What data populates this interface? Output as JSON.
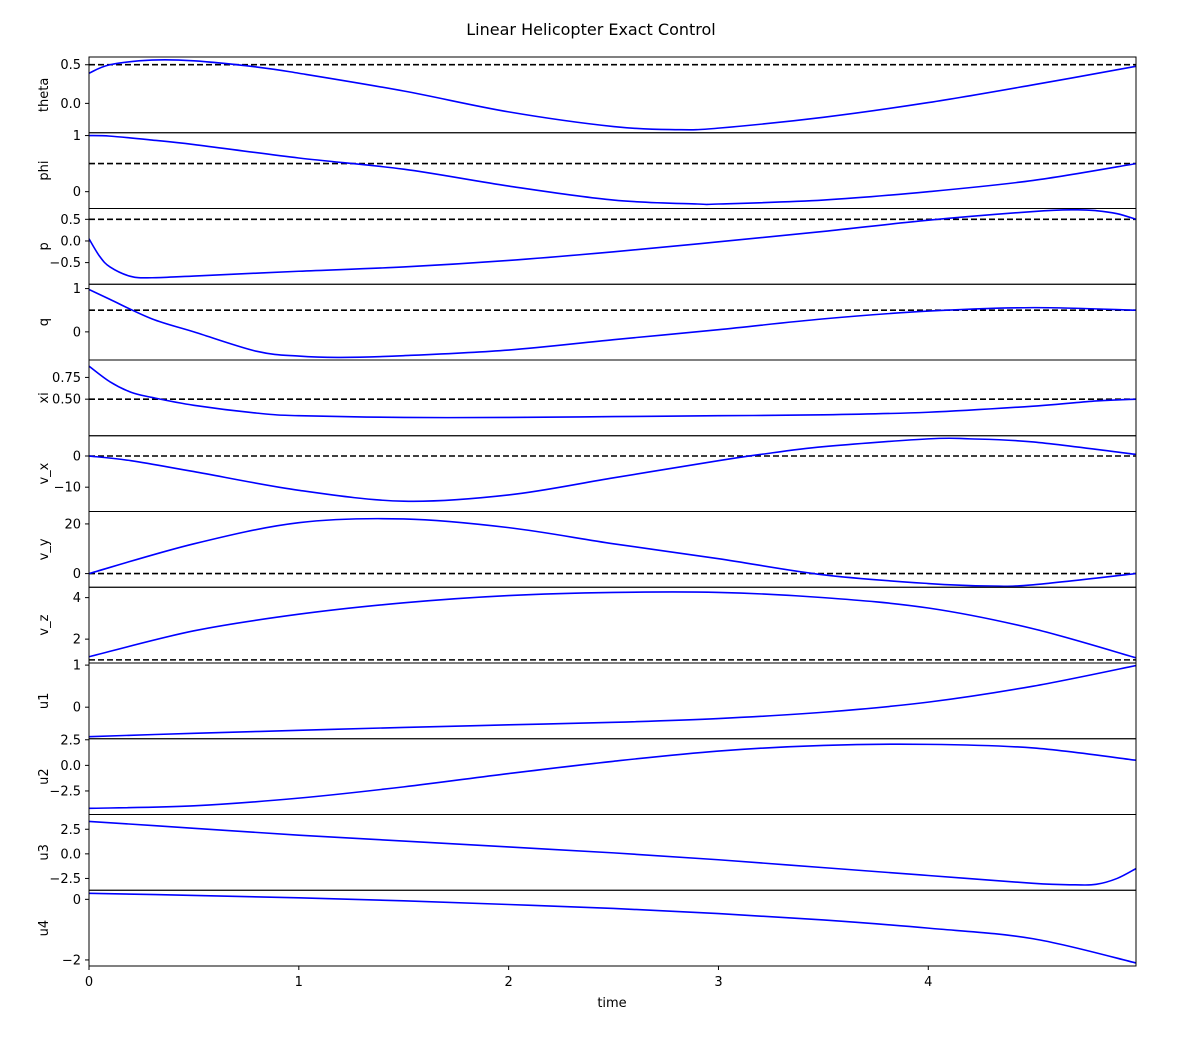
{
  "title": "Linear Helicopter Exact Control",
  "xlabel": "time",
  "chart_data": {
    "type": "line",
    "title": "Linear Helicopter Exact Control",
    "xlabel": "time",
    "xlim": [
      0,
      4.99
    ],
    "xticks": [
      0,
      1,
      2,
      3,
      4
    ],
    "xtick_labels": [
      "0",
      "1",
      "2",
      "3",
      "4"
    ],
    "grid": false,
    "colors": {
      "series": "#0000ff",
      "target": "#000000"
    },
    "subplots": [
      {
        "ylabel": "theta",
        "ylim": [
          -0.38,
          0.6
        ],
        "yticks": [
          0.5,
          0.0
        ],
        "ytick_labels": [
          "0.5",
          "0.0"
        ],
        "target": 0.5,
        "x": [
          0,
          0.1,
          0.3,
          0.5,
          0.8,
          1.0,
          1.5,
          2.0,
          2.5,
          2.8,
          3.0,
          3.5,
          4.0,
          4.5,
          4.99
        ],
        "y": [
          0.39,
          0.5,
          0.56,
          0.55,
          0.47,
          0.39,
          0.16,
          -0.11,
          -0.3,
          -0.34,
          -0.32,
          -0.18,
          0.01,
          0.24,
          0.48
        ]
      },
      {
        "ylabel": "phi",
        "ylim": [
          -0.3,
          1.05
        ],
        "yticks": [
          1,
          0
        ],
        "ytick_labels": [
          "1",
          "0"
        ],
        "target": 0.5,
        "x": [
          0,
          0.1,
          0.3,
          0.5,
          1.0,
          1.5,
          2.0,
          2.5,
          2.9,
          3.0,
          3.5,
          4.0,
          4.5,
          4.99
        ],
        "y": [
          1.0,
          0.99,
          0.92,
          0.84,
          0.6,
          0.4,
          0.1,
          -0.15,
          -0.22,
          -0.22,
          -0.15,
          0.0,
          0.2,
          0.5
        ]
      },
      {
        "ylabel": "p",
        "ylim": [
          -1.0,
          0.75
        ],
        "yticks": [
          0.5,
          0.0,
          -0.5
        ],
        "ytick_labels": [
          "0.5",
          "0.0",
          "−0.5"
        ],
        "target": 0.5,
        "x": [
          0,
          0.05,
          0.1,
          0.2,
          0.3,
          0.5,
          1.0,
          1.5,
          2.0,
          2.5,
          3.0,
          3.5,
          4.0,
          4.5,
          4.7,
          4.8,
          4.9,
          4.99
        ],
        "y": [
          0.05,
          -0.35,
          -0.6,
          -0.82,
          -0.85,
          -0.81,
          -0.7,
          -0.6,
          -0.45,
          -0.25,
          -0.02,
          0.22,
          0.48,
          0.68,
          0.72,
          0.7,
          0.63,
          0.5
        ]
      },
      {
        "ylabel": "q",
        "ylim": [
          -0.65,
          1.1
        ],
        "yticks": [
          1,
          0
        ],
        "ytick_labels": [
          "1",
          "0"
        ],
        "target": 0.5,
        "x": [
          0,
          0.1,
          0.3,
          0.5,
          0.8,
          1.0,
          1.2,
          1.5,
          2.0,
          2.5,
          3.0,
          3.5,
          4.0,
          4.5,
          4.99
        ],
        "y": [
          0.98,
          0.75,
          0.3,
          0.0,
          -0.45,
          -0.56,
          -0.59,
          -0.55,
          -0.42,
          -0.18,
          0.05,
          0.3,
          0.48,
          0.56,
          0.5
        ]
      },
      {
        "ylabel": "xi",
        "ylim": [
          0.08,
          0.95
        ],
        "yticks": [
          0.75,
          0.5
        ],
        "ytick_labels": [
          "0.75",
          "0.50"
        ],
        "target": 0.5,
        "x": [
          0,
          0.1,
          0.2,
          0.3,
          0.5,
          0.8,
          1.0,
          1.5,
          2.0,
          2.5,
          3.0,
          3.5,
          4.0,
          4.5,
          4.8,
          4.99
        ],
        "y": [
          0.88,
          0.7,
          0.58,
          0.52,
          0.43,
          0.34,
          0.31,
          0.29,
          0.29,
          0.3,
          0.31,
          0.32,
          0.35,
          0.42,
          0.48,
          0.5
        ]
      },
      {
        "ylabel": "v_x",
        "ylim": [
          -17.8,
          6.5
        ],
        "yticks": [
          0,
          -10
        ],
        "ytick_labels": [
          "0",
          "−10"
        ],
        "target": 0,
        "x": [
          0,
          0.2,
          0.5,
          1.0,
          1.5,
          2.0,
          2.5,
          3.0,
          3.2,
          3.5,
          4.0,
          4.2,
          4.5,
          4.99
        ],
        "y": [
          0,
          -1.5,
          -5,
          -11,
          -14.5,
          -12.5,
          -7,
          -1.5,
          0.5,
          3,
          5.5,
          5.5,
          4.5,
          0.5
        ]
      },
      {
        "ylabel": "v_y",
        "ylim": [
          -5.5,
          25
        ],
        "yticks": [
          20,
          0
        ],
        "ytick_labels": [
          "20",
          "0"
        ],
        "target": 0,
        "x": [
          0,
          0.5,
          1.0,
          1.5,
          2.0,
          2.5,
          3.0,
          3.5,
          4.0,
          4.3,
          4.5,
          4.99
        ],
        "y": [
          0,
          12,
          20.5,
          22,
          18.5,
          12,
          6,
          -0.5,
          -4,
          -5,
          -4.5,
          0
        ]
      },
      {
        "ylabel": "v_z",
        "ylim": [
          0.85,
          4.5
        ],
        "yticks": [
          4,
          2
        ],
        "ytick_labels": [
          "4",
          "2"
        ],
        "target": 1.0,
        "x": [
          0,
          0.5,
          1.0,
          1.5,
          2.0,
          2.5,
          3.0,
          3.5,
          4.0,
          4.5,
          4.99
        ],
        "y": [
          1.15,
          2.4,
          3.2,
          3.75,
          4.1,
          4.25,
          4.25,
          4.0,
          3.5,
          2.5,
          1.1
        ]
      },
      {
        "ylabel": "u1",
        "ylim": [
          -0.75,
          1.05
        ],
        "yticks": [
          1,
          0
        ],
        "ytick_labels": [
          "1",
          "0"
        ],
        "target": null,
        "x": [
          0,
          0.5,
          1.0,
          1.5,
          2.0,
          2.5,
          3.0,
          3.5,
          4.0,
          4.5,
          4.99
        ],
        "y": [
          -0.7,
          -0.62,
          -0.55,
          -0.48,
          -0.42,
          -0.36,
          -0.27,
          -0.12,
          0.12,
          0.5,
          0.99
        ]
      },
      {
        "ylabel": "u2",
        "ylim": [
          -4.8,
          2.6
        ],
        "yticks": [
          2.5,
          0.0,
          -2.5
        ],
        "ytick_labels": [
          "2.5",
          "0.0",
          "−2.5"
        ],
        "target": null,
        "x": [
          0,
          0.5,
          1.0,
          1.5,
          2.0,
          2.5,
          3.0,
          3.5,
          4.0,
          4.5,
          4.99
        ],
        "y": [
          -4.2,
          -3.95,
          -3.2,
          -2.1,
          -0.8,
          0.4,
          1.4,
          1.95,
          2.05,
          1.7,
          0.5
        ]
      },
      {
        "ylabel": "u3",
        "ylim": [
          -3.7,
          4.0
        ],
        "yticks": [
          2.5,
          0.0,
          -2.5
        ],
        "ytick_labels": [
          "2.5",
          "0.0",
          "−2.5"
        ],
        "target": null,
        "x": [
          0,
          0.5,
          1.0,
          1.5,
          2.0,
          2.5,
          3.0,
          3.5,
          4.0,
          4.5,
          4.7,
          4.8,
          4.9,
          4.99
        ],
        "y": [
          3.3,
          2.6,
          1.9,
          1.3,
          0.7,
          0.1,
          -0.6,
          -1.4,
          -2.2,
          -3.0,
          -3.15,
          -3.1,
          -2.5,
          -1.5
        ]
      },
      {
        "ylabel": "u4",
        "ylim": [
          -2.2,
          0.3
        ],
        "yticks": [
          0,
          -2
        ],
        "ytick_labels": [
          "0",
          "−2"
        ],
        "target": null,
        "x": [
          0,
          0.5,
          1.0,
          1.5,
          2.0,
          2.5,
          3.0,
          3.5,
          4.0,
          4.5,
          4.99
        ],
        "y": [
          0.2,
          0.13,
          0.05,
          -0.05,
          -0.17,
          -0.3,
          -0.47,
          -0.68,
          -0.95,
          -1.3,
          -2.1
        ]
      }
    ]
  }
}
